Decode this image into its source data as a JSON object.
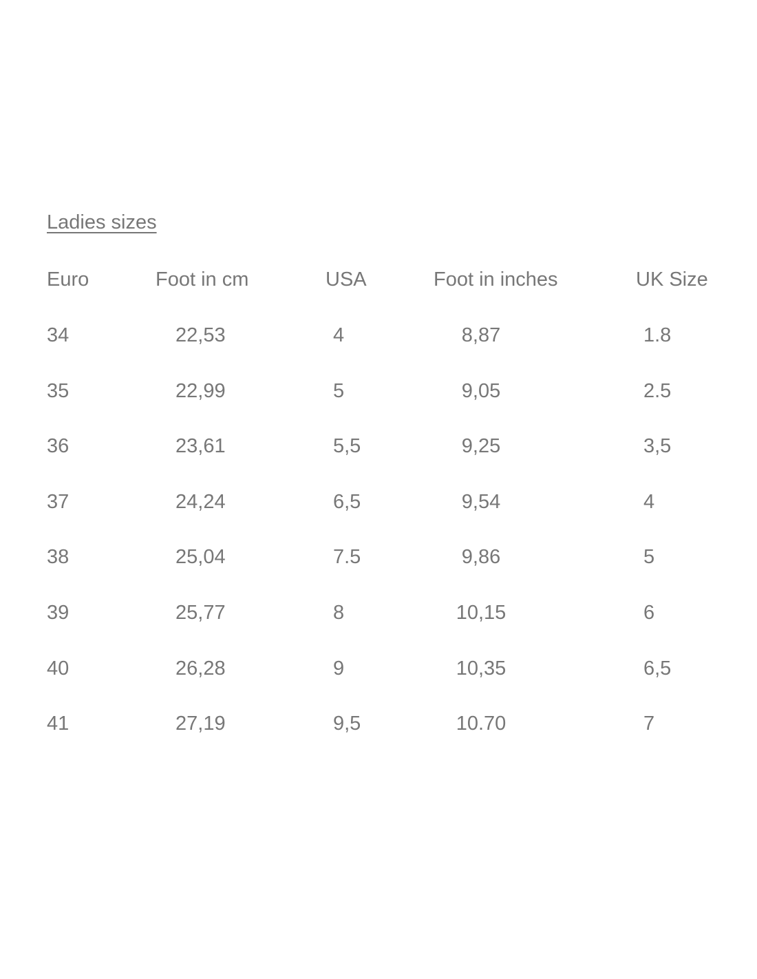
{
  "title": "Ladies sizes",
  "headers": [
    "Euro",
    "Foot in cm",
    "USA",
    "Foot in inches",
    "UK Size"
  ],
  "rows": [
    [
      "34",
      "22,53",
      "4",
      "8,87",
      "1.8"
    ],
    [
      "35",
      "22,99",
      "5",
      "9,05",
      "2.5"
    ],
    [
      "36",
      "23,61",
      "5,5",
      "9,25",
      "3,5"
    ],
    [
      "37",
      "24,24",
      "6,5",
      "9,54",
      "4"
    ],
    [
      "38",
      "25,04",
      "7.5",
      "9,86",
      "5"
    ],
    [
      "39",
      "25,77",
      "8",
      "10,15",
      "6"
    ],
    [
      "40",
      "26,28",
      "9",
      "10,35",
      "6,5"
    ],
    [
      "41",
      "27,19",
      "9,5",
      "10.70",
      "7"
    ]
  ],
  "text_color": "#777777"
}
